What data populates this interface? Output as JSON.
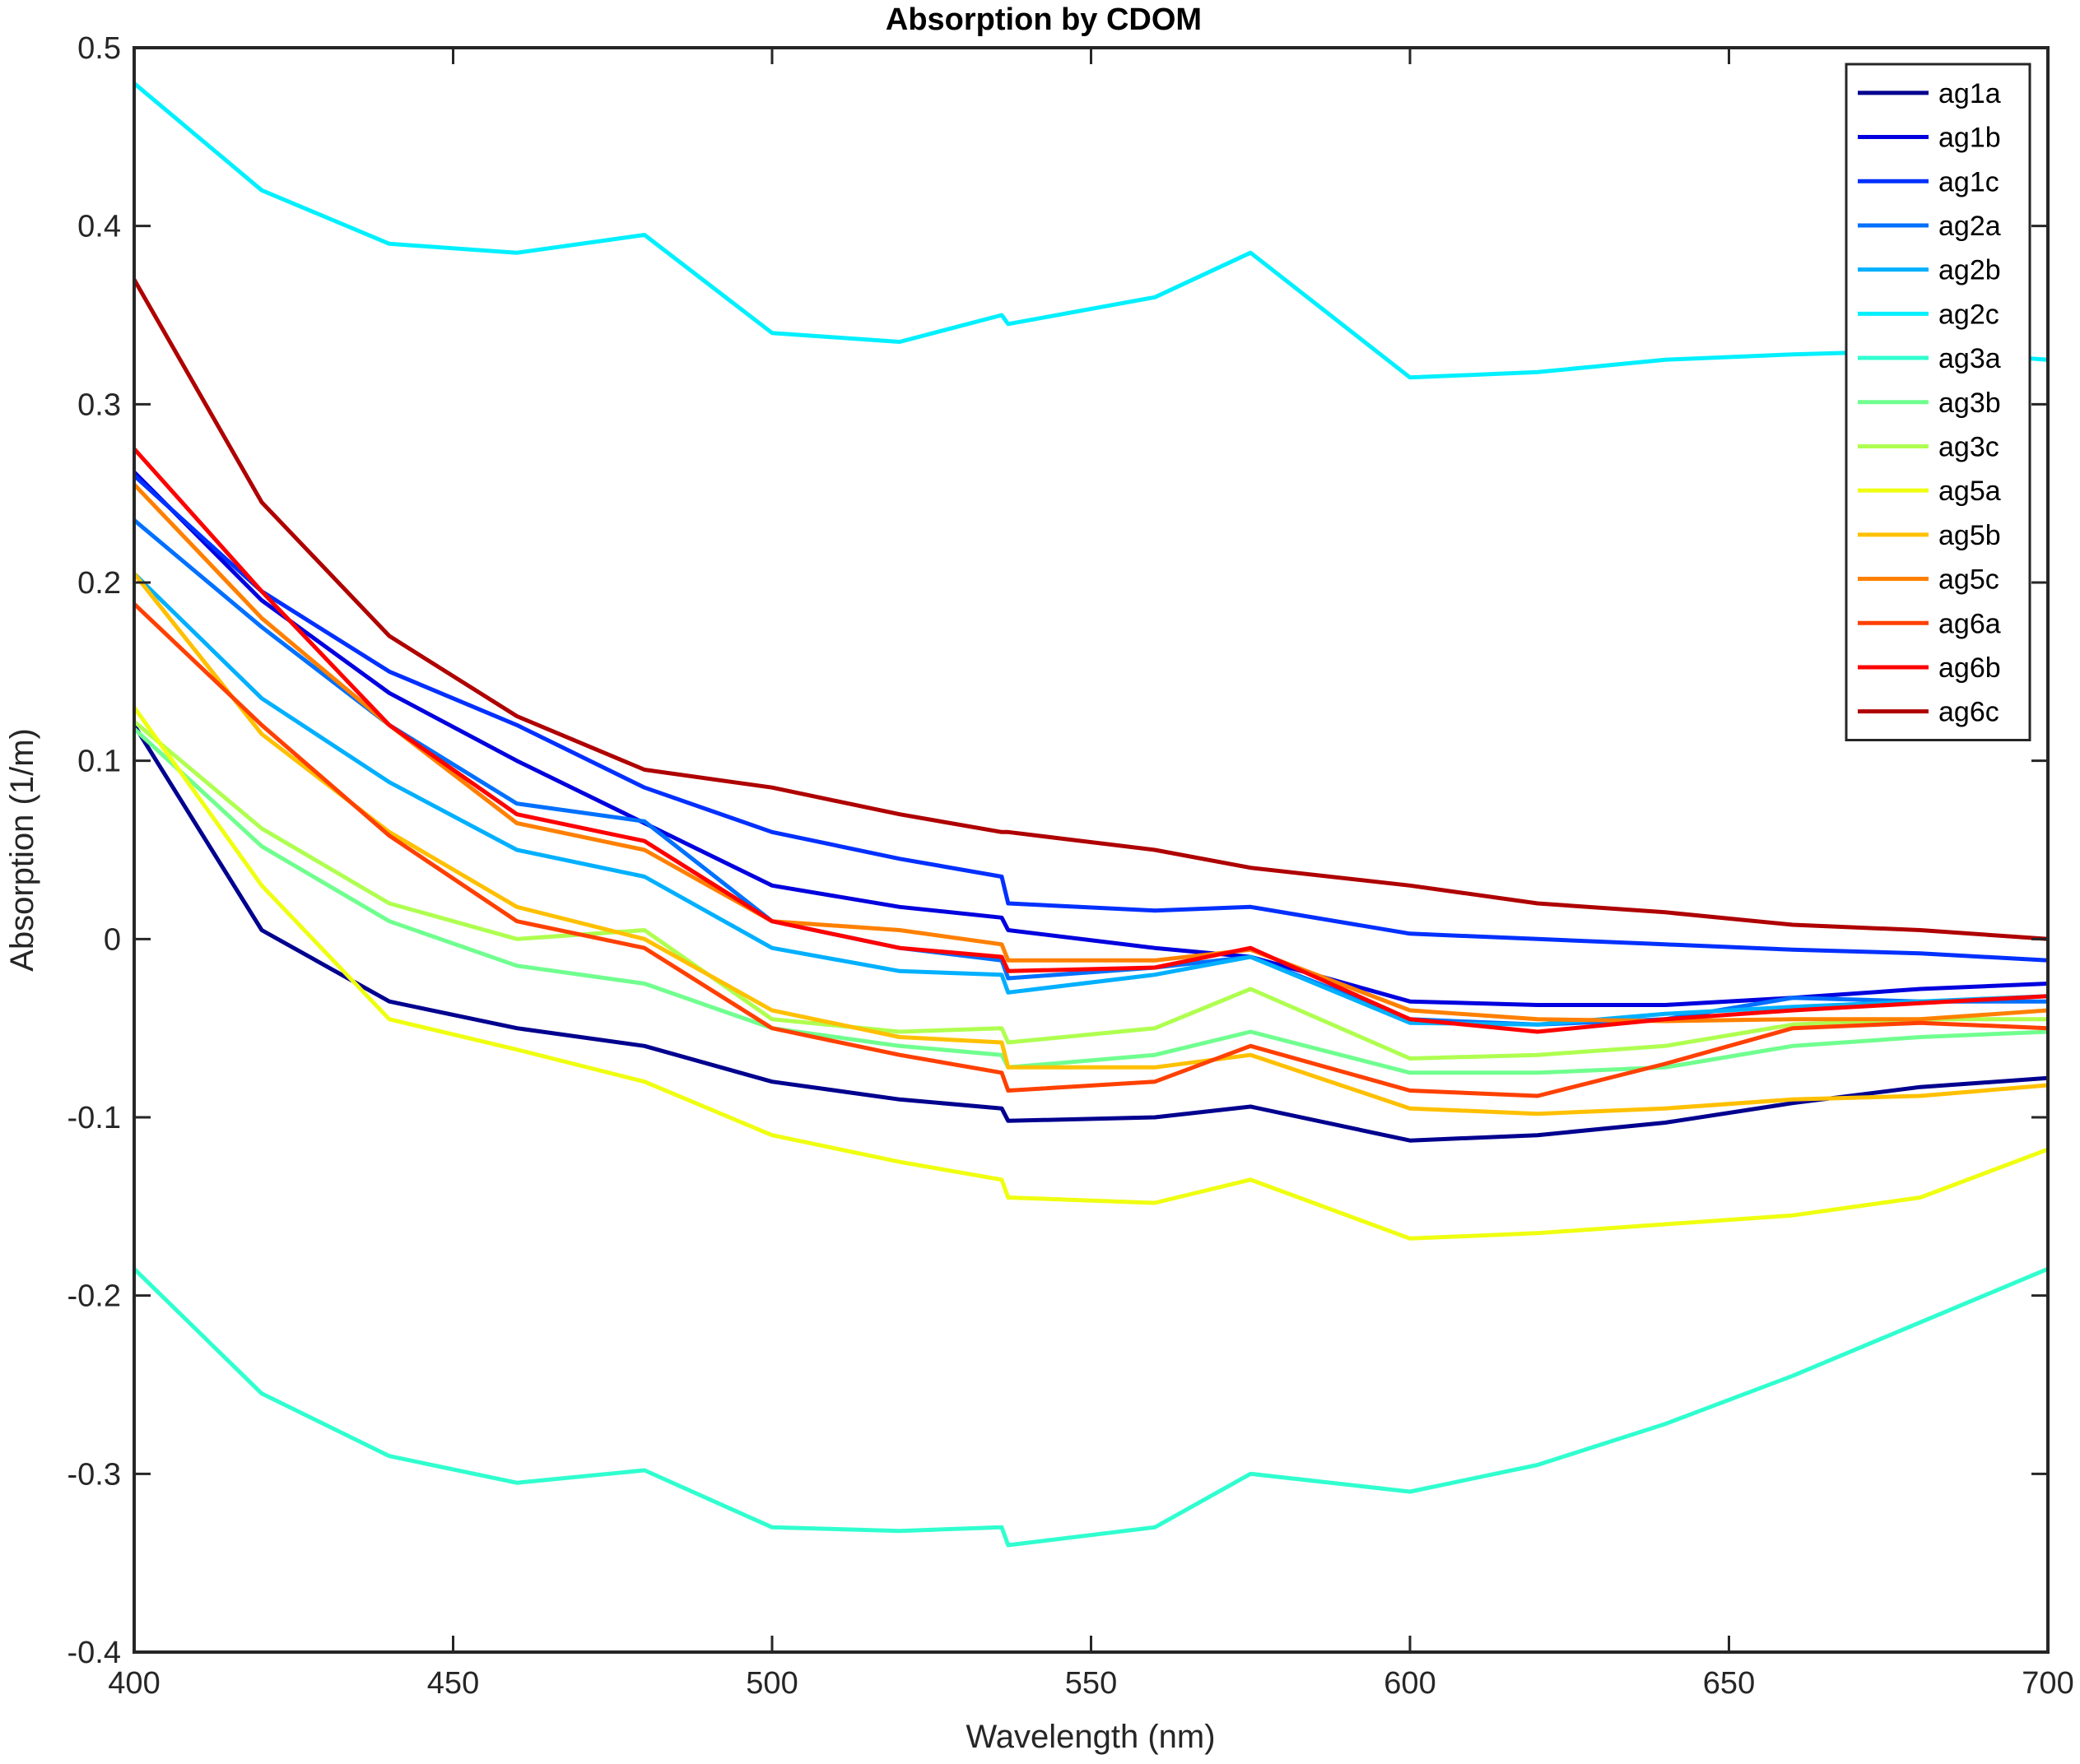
{
  "chart_data": {
    "type": "line",
    "title": "Absorption by CDOM",
    "xlabel": "Wavelength (nm)",
    "ylabel": "Absorption (1/m)",
    "xlim": [
      400,
      700
    ],
    "ylim": [
      -0.4,
      0.5
    ],
    "xticks": [
      400,
      450,
      500,
      550,
      600,
      650,
      700
    ],
    "xtick_labels": [
      "400",
      "450",
      "500",
      "550",
      "600",
      "650",
      "700"
    ],
    "yticks": [
      -0.4,
      -0.3,
      -0.2,
      -0.1,
      0,
      0.1,
      0.2,
      0.3,
      0.4,
      0.5
    ],
    "ytick_labels": [
      "-0.4",
      "-0.3",
      "-0.2",
      "-0.1",
      "0",
      "0.1",
      "0.2",
      "0.3",
      "0.4",
      "0.5"
    ],
    "grid": false,
    "legend_position": "top-right",
    "x": [
      400,
      420,
      440,
      460,
      480,
      500,
      520,
      536,
      537,
      560,
      575,
      600,
      620,
      640,
      660,
      680,
      700
    ],
    "series": [
      {
        "name": "ag1a",
        "color": "#00008F",
        "values": [
          0.12,
          0.005,
          -0.035,
          -0.05,
          -0.06,
          -0.08,
          -0.09,
          -0.095,
          -0.102,
          -0.1,
          -0.094,
          -0.113,
          -0.11,
          -0.103,
          -0.092,
          -0.083,
          -0.078
        ]
      },
      {
        "name": "ag1b",
        "color": "#0000DF",
        "values": [
          0.262,
          0.19,
          0.138,
          0.1,
          0.065,
          0.03,
          0.018,
          0.012,
          0.005,
          -0.005,
          -0.01,
          -0.035,
          -0.037,
          -0.037,
          -0.033,
          -0.028,
          -0.025
        ]
      },
      {
        "name": "ag1c",
        "color": "#0030FF",
        "values": [
          0.26,
          0.195,
          0.15,
          0.12,
          0.085,
          0.06,
          0.045,
          0.035,
          0.02,
          0.016,
          0.018,
          0.003,
          0.0,
          -0.003,
          -0.006,
          -0.008,
          -0.012
        ]
      },
      {
        "name": "ag2a",
        "color": "#0070FF",
        "values": [
          0.235,
          0.175,
          0.12,
          0.076,
          0.066,
          0.01,
          -0.005,
          -0.012,
          -0.022,
          -0.016,
          -0.01,
          -0.045,
          -0.048,
          -0.045,
          -0.033,
          -0.035,
          -0.035
        ]
      },
      {
        "name": "ag2b",
        "color": "#00B0FF",
        "values": [
          0.205,
          0.135,
          0.088,
          0.05,
          0.035,
          -0.005,
          -0.018,
          -0.02,
          -0.03,
          -0.02,
          -0.01,
          -0.047,
          -0.048,
          -0.042,
          -0.038,
          -0.035,
          -0.032
        ]
      },
      {
        "name": "ag2c",
        "color": "#00F0FF",
        "values": [
          0.48,
          0.42,
          0.39,
          0.385,
          0.395,
          0.34,
          0.335,
          0.35,
          0.345,
          0.36,
          0.385,
          0.315,
          0.318,
          0.325,
          0.328,
          0.33,
          0.325
        ]
      },
      {
        "name": "ag3a",
        "color": "#30FFCF",
        "values": [
          -0.185,
          -0.255,
          -0.29,
          -0.305,
          -0.298,
          -0.33,
          -0.332,
          -0.33,
          -0.34,
          -0.33,
          -0.3,
          -0.31,
          -0.295,
          -0.272,
          -0.245,
          -0.215,
          -0.185
        ]
      },
      {
        "name": "ag3b",
        "color": "#70FF8F",
        "values": [
          0.118,
          0.052,
          0.01,
          -0.015,
          -0.025,
          -0.05,
          -0.06,
          -0.065,
          -0.072,
          -0.065,
          -0.052,
          -0.075,
          -0.075,
          -0.072,
          -0.06,
          -0.055,
          -0.052
        ]
      },
      {
        "name": "ag3c",
        "color": "#AFFF50",
        "values": [
          0.122,
          0.062,
          0.02,
          0.0,
          0.005,
          -0.045,
          -0.052,
          -0.05,
          -0.058,
          -0.05,
          -0.028,
          -0.067,
          -0.065,
          -0.06,
          -0.048,
          -0.045,
          -0.045
        ]
      },
      {
        "name": "ag5a",
        "color": "#EFFF10",
        "values": [
          0.13,
          0.03,
          -0.045,
          -0.062,
          -0.08,
          -0.11,
          -0.125,
          -0.135,
          -0.145,
          -0.148,
          -0.135,
          -0.168,
          -0.165,
          -0.16,
          -0.155,
          -0.145,
          -0.118
        ]
      },
      {
        "name": "ag5b",
        "color": "#FFC000",
        "values": [
          0.205,
          0.115,
          0.06,
          0.018,
          0.0,
          -0.04,
          -0.055,
          -0.058,
          -0.072,
          -0.072,
          -0.065,
          -0.095,
          -0.098,
          -0.095,
          -0.09,
          -0.088,
          -0.082
        ]
      },
      {
        "name": "ag5c",
        "color": "#FF8000",
        "values": [
          0.255,
          0.18,
          0.12,
          0.065,
          0.05,
          0.01,
          0.005,
          -0.003,
          -0.012,
          -0.012,
          -0.006,
          -0.04,
          -0.045,
          -0.046,
          -0.045,
          -0.045,
          -0.04
        ]
      },
      {
        "name": "ag6a",
        "color": "#FF4000",
        "values": [
          0.188,
          0.12,
          0.058,
          0.01,
          -0.005,
          -0.05,
          -0.065,
          -0.075,
          -0.085,
          -0.08,
          -0.06,
          -0.085,
          -0.088,
          -0.07,
          -0.05,
          -0.047,
          -0.05
        ]
      },
      {
        "name": "ag6b",
        "color": "#FF0000",
        "values": [
          0.275,
          0.195,
          0.12,
          0.07,
          0.055,
          0.01,
          -0.005,
          -0.01,
          -0.018,
          -0.016,
          -0.005,
          -0.045,
          -0.052,
          -0.045,
          -0.04,
          -0.036,
          -0.032
        ]
      },
      {
        "name": "ag6c",
        "color": "#AF0000",
        "values": [
          0.37,
          0.245,
          0.17,
          0.125,
          0.095,
          0.085,
          0.07,
          0.06,
          0.06,
          0.05,
          0.04,
          0.03,
          0.02,
          0.015,
          0.008,
          0.005,
          0.0
        ]
      }
    ]
  }
}
